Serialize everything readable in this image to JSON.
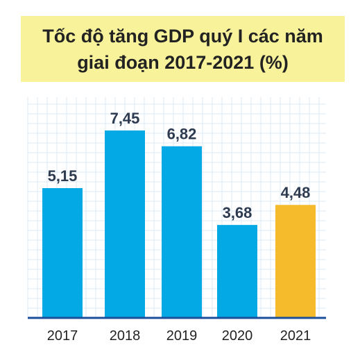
{
  "title": "Tốc độ tăng GDP quý I các năm giai đoạn 2017-2021 (%)",
  "chart_data": {
    "type": "bar",
    "title": "Tốc độ tăng GDP quý I các năm giai đoạn 2017-2021 (%)",
    "xlabel": "",
    "ylabel": "",
    "categories": [
      "2017",
      "2018",
      "2019",
      "2020",
      "2021"
    ],
    "values": [
      5.15,
      7.45,
      6.82,
      3.68,
      4.48
    ],
    "value_labels": [
      "5,15",
      "7,45",
      "6,82",
      "3,68",
      "4,48"
    ],
    "ylim": [
      0,
      8.25
    ],
    "grid": true,
    "colors": {
      "default_bar": "#03a9e4",
      "highlight_bar": "#f5bb2c",
      "highlight_category": "2021",
      "title_background": "#f8f39b",
      "baseline": "#1b4f9c",
      "grid": "#dcebf6"
    }
  }
}
